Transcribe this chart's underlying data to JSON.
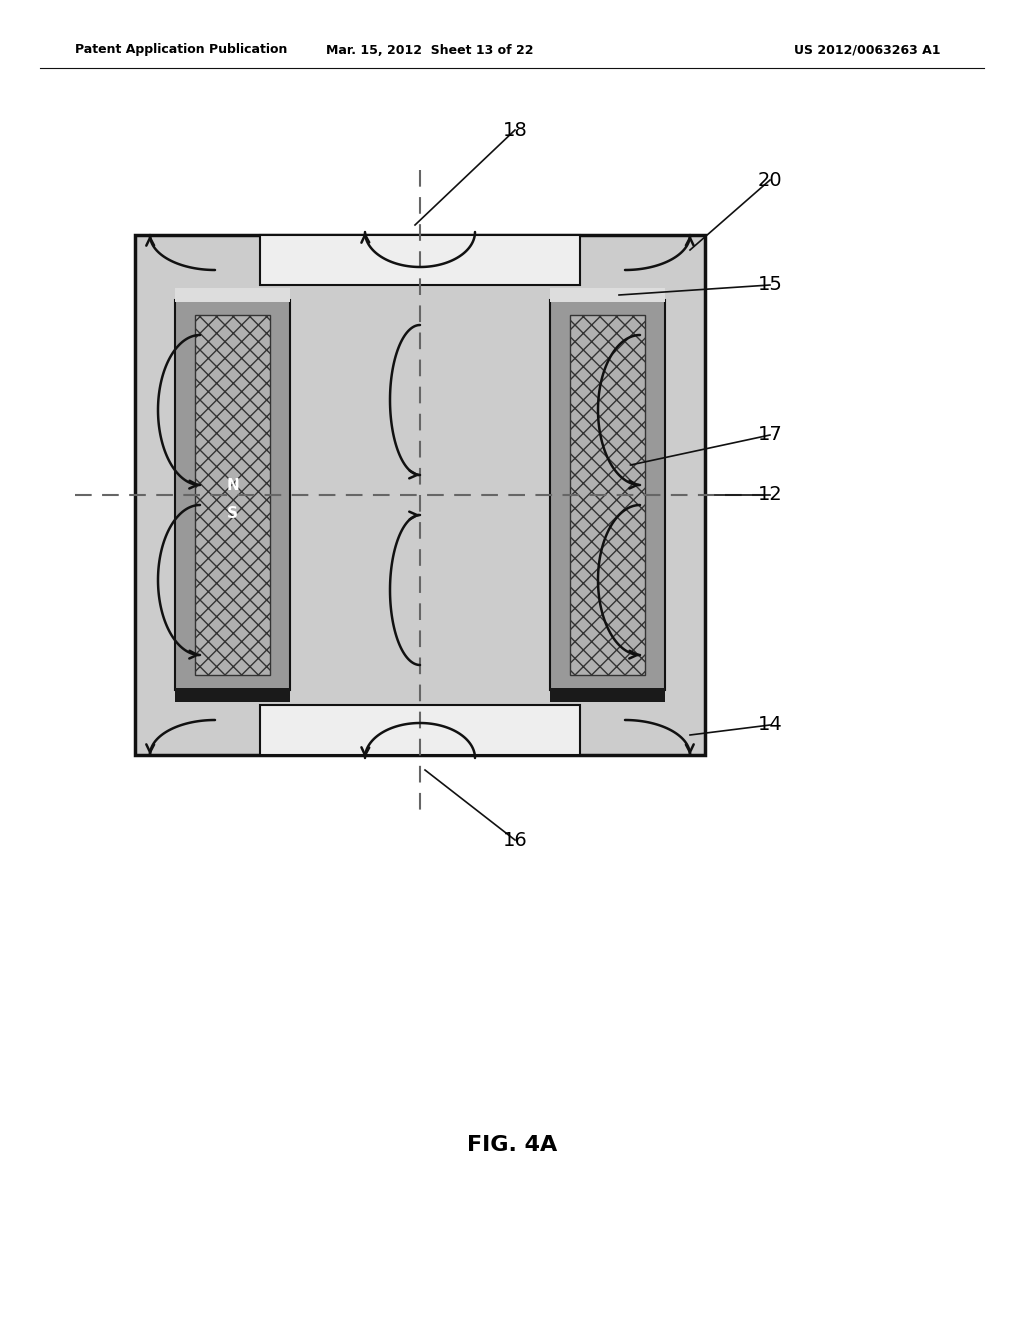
{
  "bg_color": "#ffffff",
  "header_left": "Patent Application Publication",
  "header_mid": "Mar. 15, 2012  Sheet 13 of 22",
  "header_right": "US 2012/0063263 A1",
  "figure_label": "FIG. 4A",
  "light_gray": "#cccccc",
  "mid_gray": "#999999",
  "dark_gray": "#555555",
  "line_color": "#111111",
  "dashed_color": "#777777",
  "white": "#f5f5f5"
}
